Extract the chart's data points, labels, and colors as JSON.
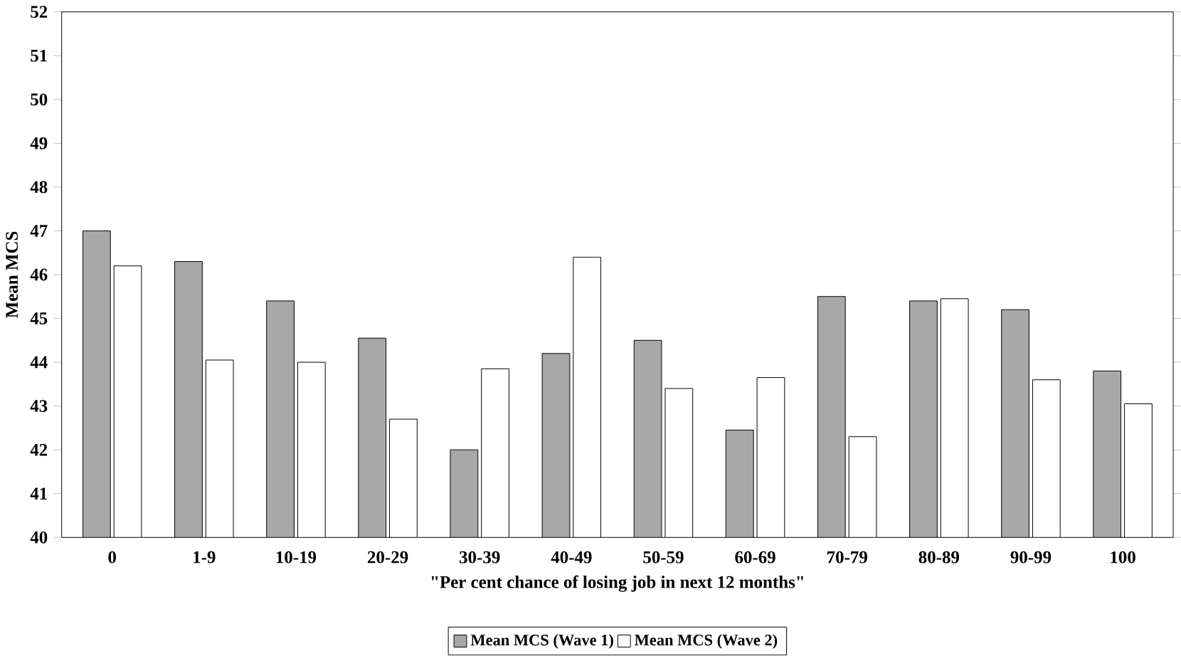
{
  "chart_data": {
    "type": "bar",
    "xlabel": "\"Per cent chance of losing job in next 12 months\"",
    "ylabel": "Mean MCS",
    "categories": [
      "0",
      "1-9",
      "10-19",
      "20-29",
      "30-39",
      "40-49",
      "50-59",
      "60-69",
      "70-79",
      "80-89",
      "90-99",
      "100"
    ],
    "series": [
      {
        "name": "Mean MCS (Wave 1)",
        "color": "#a8a8a8",
        "values": [
          47.0,
          46.3,
          45.4,
          44.55,
          42.0,
          44.2,
          44.5,
          42.45,
          45.5,
          45.4,
          45.2,
          43.8
        ]
      },
      {
        "name": "Mean MCS (Wave 2)",
        "color": "#ffffff",
        "values": [
          46.2,
          44.05,
          44.0,
          42.7,
          43.85,
          46.4,
          43.4,
          43.65,
          42.3,
          45.45,
          43.6,
          43.05
        ]
      }
    ],
    "ylim": [
      40,
      52
    ],
    "yticks": [
      40,
      41,
      42,
      43,
      44,
      45,
      46,
      47,
      48,
      49,
      50,
      51,
      52
    ],
    "legend": "bottom",
    "grid": false
  }
}
